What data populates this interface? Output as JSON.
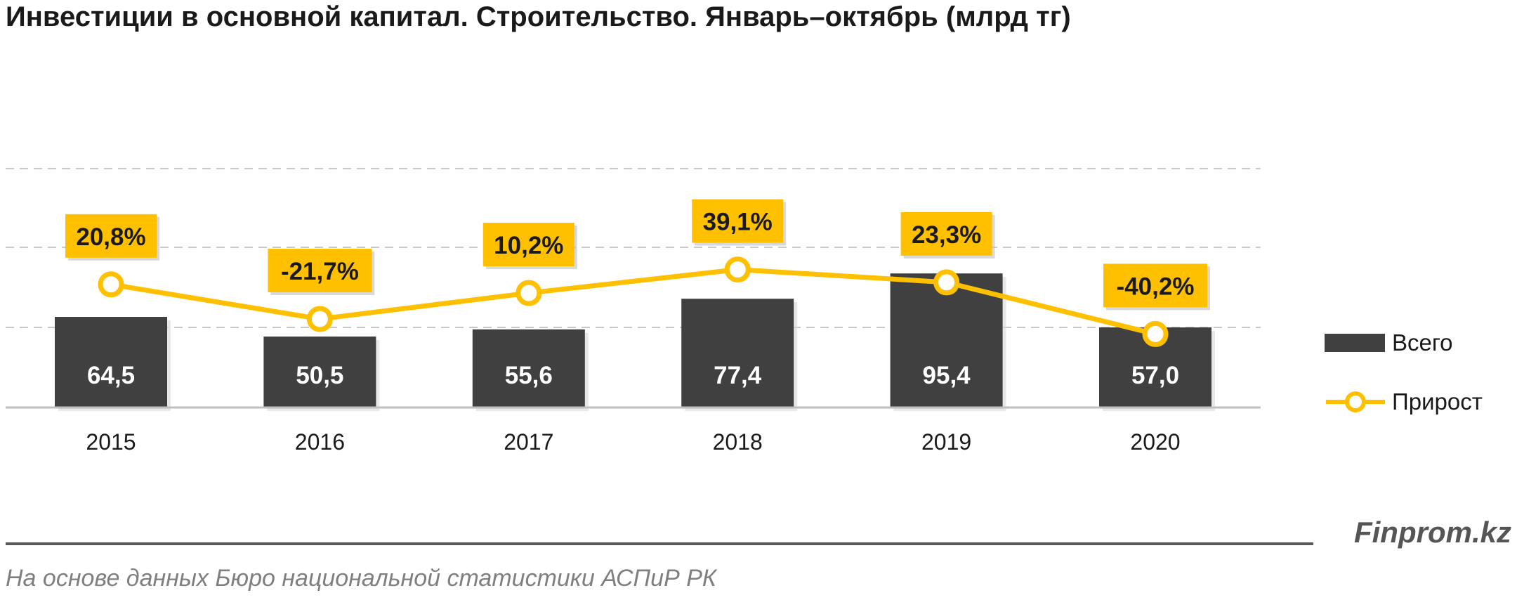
{
  "title": "Инвестиции в основной капитал. Строительство. Январь–октябрь (млрд тг)",
  "brand": "Finprom.kz",
  "source": "На основе данных  Бюро национальной  статистики АСПиР РК",
  "colors": {
    "bar": "#404040",
    "line": "#FFC000",
    "label_bg": "#FFC000",
    "grid": "#c8c8c8",
    "axis": "#bfbfbf"
  },
  "chart_data": {
    "type": "bar",
    "title": "Инвестиции в основной капитал. Строительство. Январь–октябрь (млрд тг)",
    "categories": [
      "2015",
      "2016",
      "2017",
      "2018",
      "2019",
      "2020"
    ],
    "series": [
      {
        "name": "Всего",
        "type": "bar",
        "values": [
          64.5,
          50.5,
          55.6,
          77.4,
          95.4,
          57.0
        ],
        "labels": [
          "64,5",
          "50,5",
          "55,6",
          "77,4",
          "95,4",
          "57,0"
        ]
      },
      {
        "name": "Прирост",
        "type": "line",
        "values": [
          20.8,
          -21.7,
          10.2,
          39.1,
          23.3,
          -40.2
        ],
        "labels": [
          "20,8%",
          "-21,7%",
          "10,2%",
          "39,1%",
          "23,3%",
          "-40,2%"
        ]
      }
    ],
    "ylim_bars": [
      0,
      140
    ],
    "ylim_line": [
      -450,
      170
    ],
    "grid": true,
    "legend": "right"
  }
}
